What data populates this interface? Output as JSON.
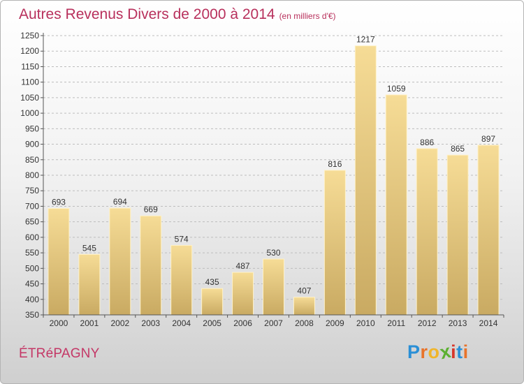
{
  "header": {
    "title": "Autres Revenus Divers de 2000 à 2014",
    "subtitle": "(en milliers d'€)"
  },
  "footer": {
    "place": "ÉTRéPAGNY",
    "logo_letters": [
      "P",
      "r",
      "o",
      "x",
      "i",
      "t",
      "i"
    ],
    "logo_colors": [
      "#2a8fd6",
      "#e8732a",
      "#f0b52a",
      "#5cb032",
      "#d6362a",
      "#2a8fd6",
      "#e8732a"
    ]
  },
  "colors": {
    "bar_top": "#f6dc96",
    "bar_bottom": "#c9aa62",
    "bar_edge": "#fff2c8",
    "axis": "#555555",
    "grid": "#bdbdbd",
    "text": "#333333"
  },
  "chart_data": {
    "type": "bar",
    "title": "Autres Revenus Divers de 2000 à 2014",
    "subtitle": "(en milliers d'€)",
    "categories": [
      "2000",
      "2001",
      "2002",
      "2003",
      "2004",
      "2005",
      "2006",
      "2007",
      "2008",
      "2009",
      "2010",
      "2011",
      "2012",
      "2013",
      "2014"
    ],
    "values": [
      693,
      545,
      694,
      669,
      574,
      435,
      487,
      530,
      407,
      816,
      1217,
      1059,
      886,
      865,
      897
    ],
    "ylim": [
      350,
      1250
    ],
    "yticks": [
      350,
      400,
      450,
      500,
      550,
      600,
      650,
      700,
      750,
      800,
      850,
      900,
      950,
      1000,
      1050,
      1100,
      1150,
      1200,
      1250
    ],
    "grid": true,
    "data_labels": true
  }
}
